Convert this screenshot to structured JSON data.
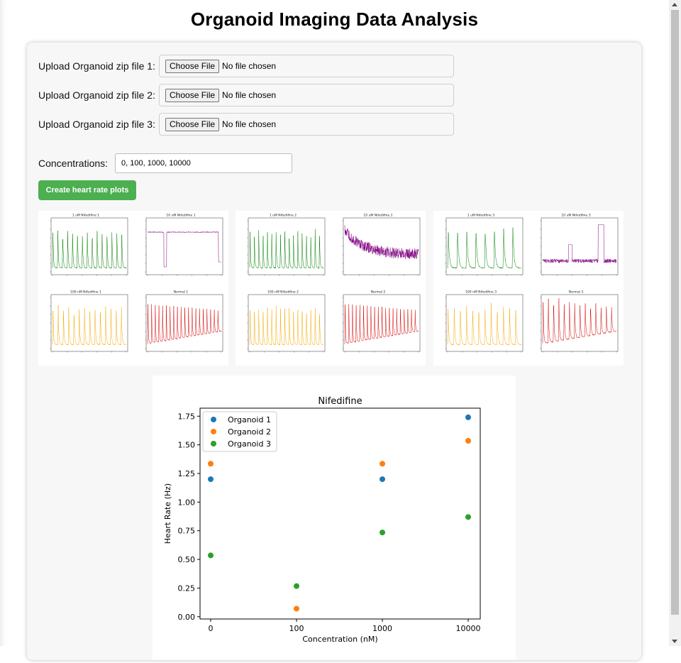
{
  "page": {
    "title": "Organoid Imaging Data Analysis"
  },
  "uploads": [
    {
      "label": "Upload Organoid zip file 1:",
      "button": "Choose File",
      "status": "No file chosen"
    },
    {
      "label": "Upload Organoid zip file 2:",
      "button": "Choose File",
      "status": "No file chosen"
    },
    {
      "label": "Upload Organoid zip file 3:",
      "button": "Choose File",
      "status": "No file chosen"
    }
  ],
  "concentrations": {
    "label": "Concentrations:",
    "value": "0, 100, 1000, 10000"
  },
  "create_button": {
    "label": "Create heart rate plots"
  },
  "organoid_panels": [
    {
      "subplots": [
        {
          "title": "1 uM Nifedifine 1",
          "color": "#008000",
          "beats": 15
        },
        {
          "title": "10 uM Nifedifine 1",
          "color": "#800080",
          "beats": 0
        },
        {
          "title": "100 nM Nifedifine 1",
          "color": "#f5a800",
          "beats": 14
        },
        {
          "title": "Normal 1",
          "color": "#d60000",
          "beats": 20
        }
      ]
    },
    {
      "subplots": [
        {
          "title": "1 uM Nifedifine 2",
          "color": "#008000",
          "beats": 17
        },
        {
          "title": "10 uM Nifedifine 2",
          "color": "#800080",
          "beats": 0
        },
        {
          "title": "100 nM Nifedifine 2",
          "color": "#f5a800",
          "beats": 17
        },
        {
          "title": "Normal 2",
          "color": "#d60000",
          "beats": 20
        }
      ]
    },
    {
      "subplots": [
        {
          "title": "1 uM Nifedifine 3",
          "color": "#008000",
          "beats": 8
        },
        {
          "title": "10 uM Nifedifine 3",
          "color": "#800080",
          "beats": 0
        },
        {
          "title": "100 nM Nifedifine 3",
          "color": "#f5a800",
          "beats": 12
        },
        {
          "title": "Normal 3",
          "color": "#d60000",
          "beats": 14
        }
      ]
    }
  ],
  "chart_data": {
    "type": "scatter",
    "title": "Nifedifine",
    "xlabel": "Concentration (nM)",
    "ylabel": "Heart Rate (Hz)",
    "categories": [
      "0",
      "100",
      "1000",
      "10000"
    ],
    "ylim": [
      -0.02,
      1.82
    ],
    "yticks": [
      "0.00",
      "0.25",
      "0.50",
      "0.75",
      "1.00",
      "1.25",
      "1.50",
      "1.75"
    ],
    "legend_position": "top-left",
    "series": [
      {
        "name": "Organoid 1",
        "color": "#1f77b4",
        "points": [
          [
            0,
            1.2
          ],
          [
            2,
            1.2
          ],
          [
            3,
            1.74
          ]
        ]
      },
      {
        "name": "Organoid 2",
        "color": "#ff7f0e",
        "points": [
          [
            0,
            1.335
          ],
          [
            1,
            0.07
          ],
          [
            2,
            1.335
          ],
          [
            3,
            1.535
          ]
        ]
      },
      {
        "name": "Organoid 3",
        "color": "#2ca02c",
        "points": [
          [
            0,
            0.535
          ],
          [
            1,
            0.267
          ],
          [
            2,
            0.735
          ],
          [
            3,
            0.87
          ]
        ]
      }
    ]
  }
}
